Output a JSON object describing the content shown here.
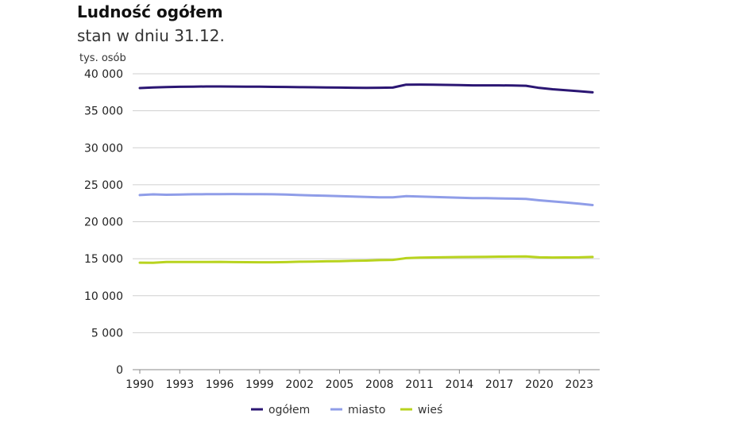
{
  "chart_data": {
    "type": "line",
    "title": "Ludność ogółem",
    "subtitle": "stan w dniu 31.12.",
    "ylabel": "tys. osób",
    "xlabel": "",
    "ylim": [
      0,
      40000
    ],
    "y_ticks": [
      0,
      5000,
      10000,
      15000,
      20000,
      25000,
      30000,
      35000,
      40000
    ],
    "y_tick_labels": [
      "0",
      "5 000",
      "10 000",
      "15 000",
      "20 000",
      "25 000",
      "30 000",
      "35 000",
      "40 000"
    ],
    "x": [
      1990,
      1991,
      1992,
      1993,
      1994,
      1995,
      1996,
      1997,
      1998,
      1999,
      2000,
      2001,
      2002,
      2003,
      2004,
      2005,
      2006,
      2007,
      2008,
      2009,
      2010,
      2011,
      2012,
      2013,
      2014,
      2015,
      2016,
      2017,
      2018,
      2019,
      2020,
      2021,
      2022,
      2023,
      2024
    ],
    "x_ticks": [
      1990,
      1993,
      1996,
      1999,
      2002,
      2005,
      2008,
      2011,
      2014,
      2017,
      2020,
      2023
    ],
    "grid": "horizontal",
    "legend_position": "bottom",
    "series": [
      {
        "name": "ogółem",
        "color": "#2b1673",
        "values": [
          38073,
          38144,
          38204,
          38244,
          38265,
          38284,
          38289,
          38275,
          38260,
          38254,
          38230,
          38220,
          38191,
          38173,
          38155,
          38133,
          38115,
          38100,
          38115,
          38136,
          38530,
          38538,
          38533,
          38495,
          38479,
          38437,
          38432,
          38434,
          38411,
          38382,
          38089,
          37907,
          37767,
          37637,
          37490
        ]
      },
      {
        "name": "miasto",
        "color": "#8f9de8",
        "values": [
          23600,
          23700,
          23650,
          23680,
          23710,
          23720,
          23720,
          23740,
          23730,
          23730,
          23710,
          23680,
          23600,
          23550,
          23510,
          23460,
          23400,
          23350,
          23300,
          23300,
          23450,
          23400,
          23360,
          23300,
          23250,
          23200,
          23180,
          23150,
          23120,
          23080,
          22900,
          22750,
          22600,
          22450,
          22250
        ]
      },
      {
        "name": "wieś",
        "color": "#b8d31e",
        "values": [
          14470,
          14440,
          14550,
          14560,
          14560,
          14560,
          14570,
          14540,
          14530,
          14520,
          14520,
          14540,
          14590,
          14620,
          14650,
          14670,
          14710,
          14750,
          14810,
          14840,
          15080,
          15140,
          15170,
          15200,
          15230,
          15240,
          15250,
          15280,
          15290,
          15300,
          15190,
          15160,
          15170,
          15190,
          15240
        ]
      }
    ]
  }
}
